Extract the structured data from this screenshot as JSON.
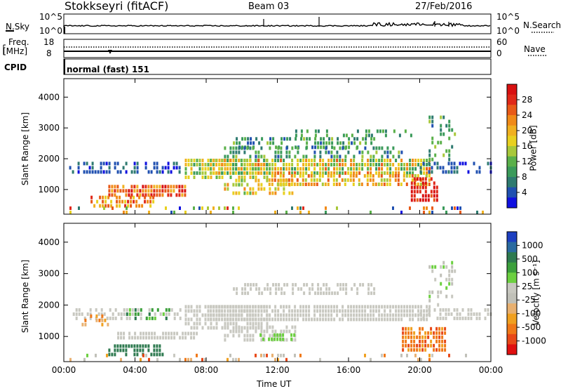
{
  "header": {
    "station": "Stokkseyri (fitACF)",
    "beam": "Beam 03",
    "date": "27/Feb/2016"
  },
  "noise_panel": {
    "left_label": "N.Sky",
    "right_label": "N.Search",
    "left_ticks": [
      "10^5",
      "10^0"
    ],
    "right_ticks": [
      "10^5",
      "10^0"
    ]
  },
  "freq_panel": {
    "label_top": "Freq.",
    "label_unit": "[MHz]",
    "left_ticks": [
      "18",
      "8"
    ],
    "right_label": "Nave",
    "right_ticks": [
      "60",
      "0"
    ]
  },
  "cpid_panel": {
    "label": "CPID",
    "text": "normal (fast) 151"
  },
  "chart_data": [
    {
      "type": "heatmap",
      "name": "power",
      "ylabel": "Slant Range [km]",
      "yticks": [
        "1000",
        "2000",
        "3000",
        "4000"
      ],
      "ylim": [
        200,
        4600
      ],
      "colorbar_label": "Power [dB]",
      "colorbar_ticks": [
        "4",
        "8",
        "12",
        "16",
        "20",
        "24",
        "28"
      ],
      "colors": [
        "#1010e0",
        "#2050b0",
        "#2e7a70",
        "#3a9a5a",
        "#5ab04a",
        "#a8c83a",
        "#e8d020",
        "#f0b020",
        "#f08a18",
        "#e85a18",
        "#e02818",
        "#d81010"
      ]
    },
    {
      "type": "heatmap",
      "name": "velocity",
      "ylabel": "Slant Range [km]",
      "yticks": [
        "1000",
        "2000",
        "3000",
        "4000"
      ],
      "ylim": [
        200,
        4600
      ],
      "colorbar_label": "Velocity [m s⁻¹]",
      "colorbar_ticks": [
        "1000",
        "500",
        "100",
        "25",
        "-25",
        "-100",
        "-500",
        "-1000"
      ],
      "colors": [
        "#1d3fc0",
        "#2a6aa0",
        "#2e7a50",
        "#3ca03c",
        "#6cd040",
        "#c8c8c0",
        "#c0c0b8",
        "#e8b070",
        "#f0a020",
        "#f07818",
        "#e84818",
        "#e01010"
      ]
    }
  ],
  "xaxis": {
    "label": "Time UT",
    "ticks": [
      "00:00",
      "04:00",
      "08:00",
      "12:00",
      "16:00",
      "20:00",
      "00:00"
    ]
  }
}
